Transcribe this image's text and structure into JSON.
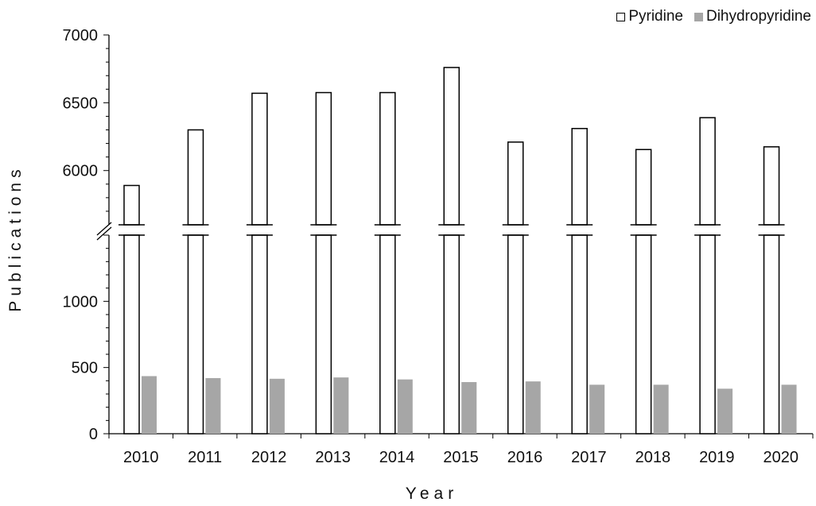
{
  "chart_data": {
    "type": "bar",
    "title": "",
    "xlabel": "Year",
    "ylabel": "Publications",
    "categories": [
      "2010",
      "2011",
      "2012",
      "2013",
      "2014",
      "2015",
      "2016",
      "2017",
      "2018",
      "2019",
      "2020"
    ],
    "series": [
      {
        "name": "Pyridine",
        "values": [
          5890,
          6300,
          6570,
          6575,
          6575,
          6760,
          6210,
          6310,
          6155,
          6390,
          6175
        ],
        "color": "#ffffff",
        "stroke": "#000000"
      },
      {
        "name": "Dihydropyridine",
        "values": [
          435,
          420,
          415,
          425,
          410,
          390,
          395,
          370,
          370,
          340,
          370
        ],
        "color": "#a6a6a6"
      }
    ],
    "y_axis_broken": true,
    "lower_segment": {
      "ylim": [
        0,
        1500
      ],
      "ticks": [
        0,
        500,
        1000
      ]
    },
    "upper_segment": {
      "ylim": [
        5600,
        7000
      ],
      "ticks": [
        6000,
        6500,
        7000
      ]
    },
    "grid": false,
    "legend_position": "top-right"
  }
}
